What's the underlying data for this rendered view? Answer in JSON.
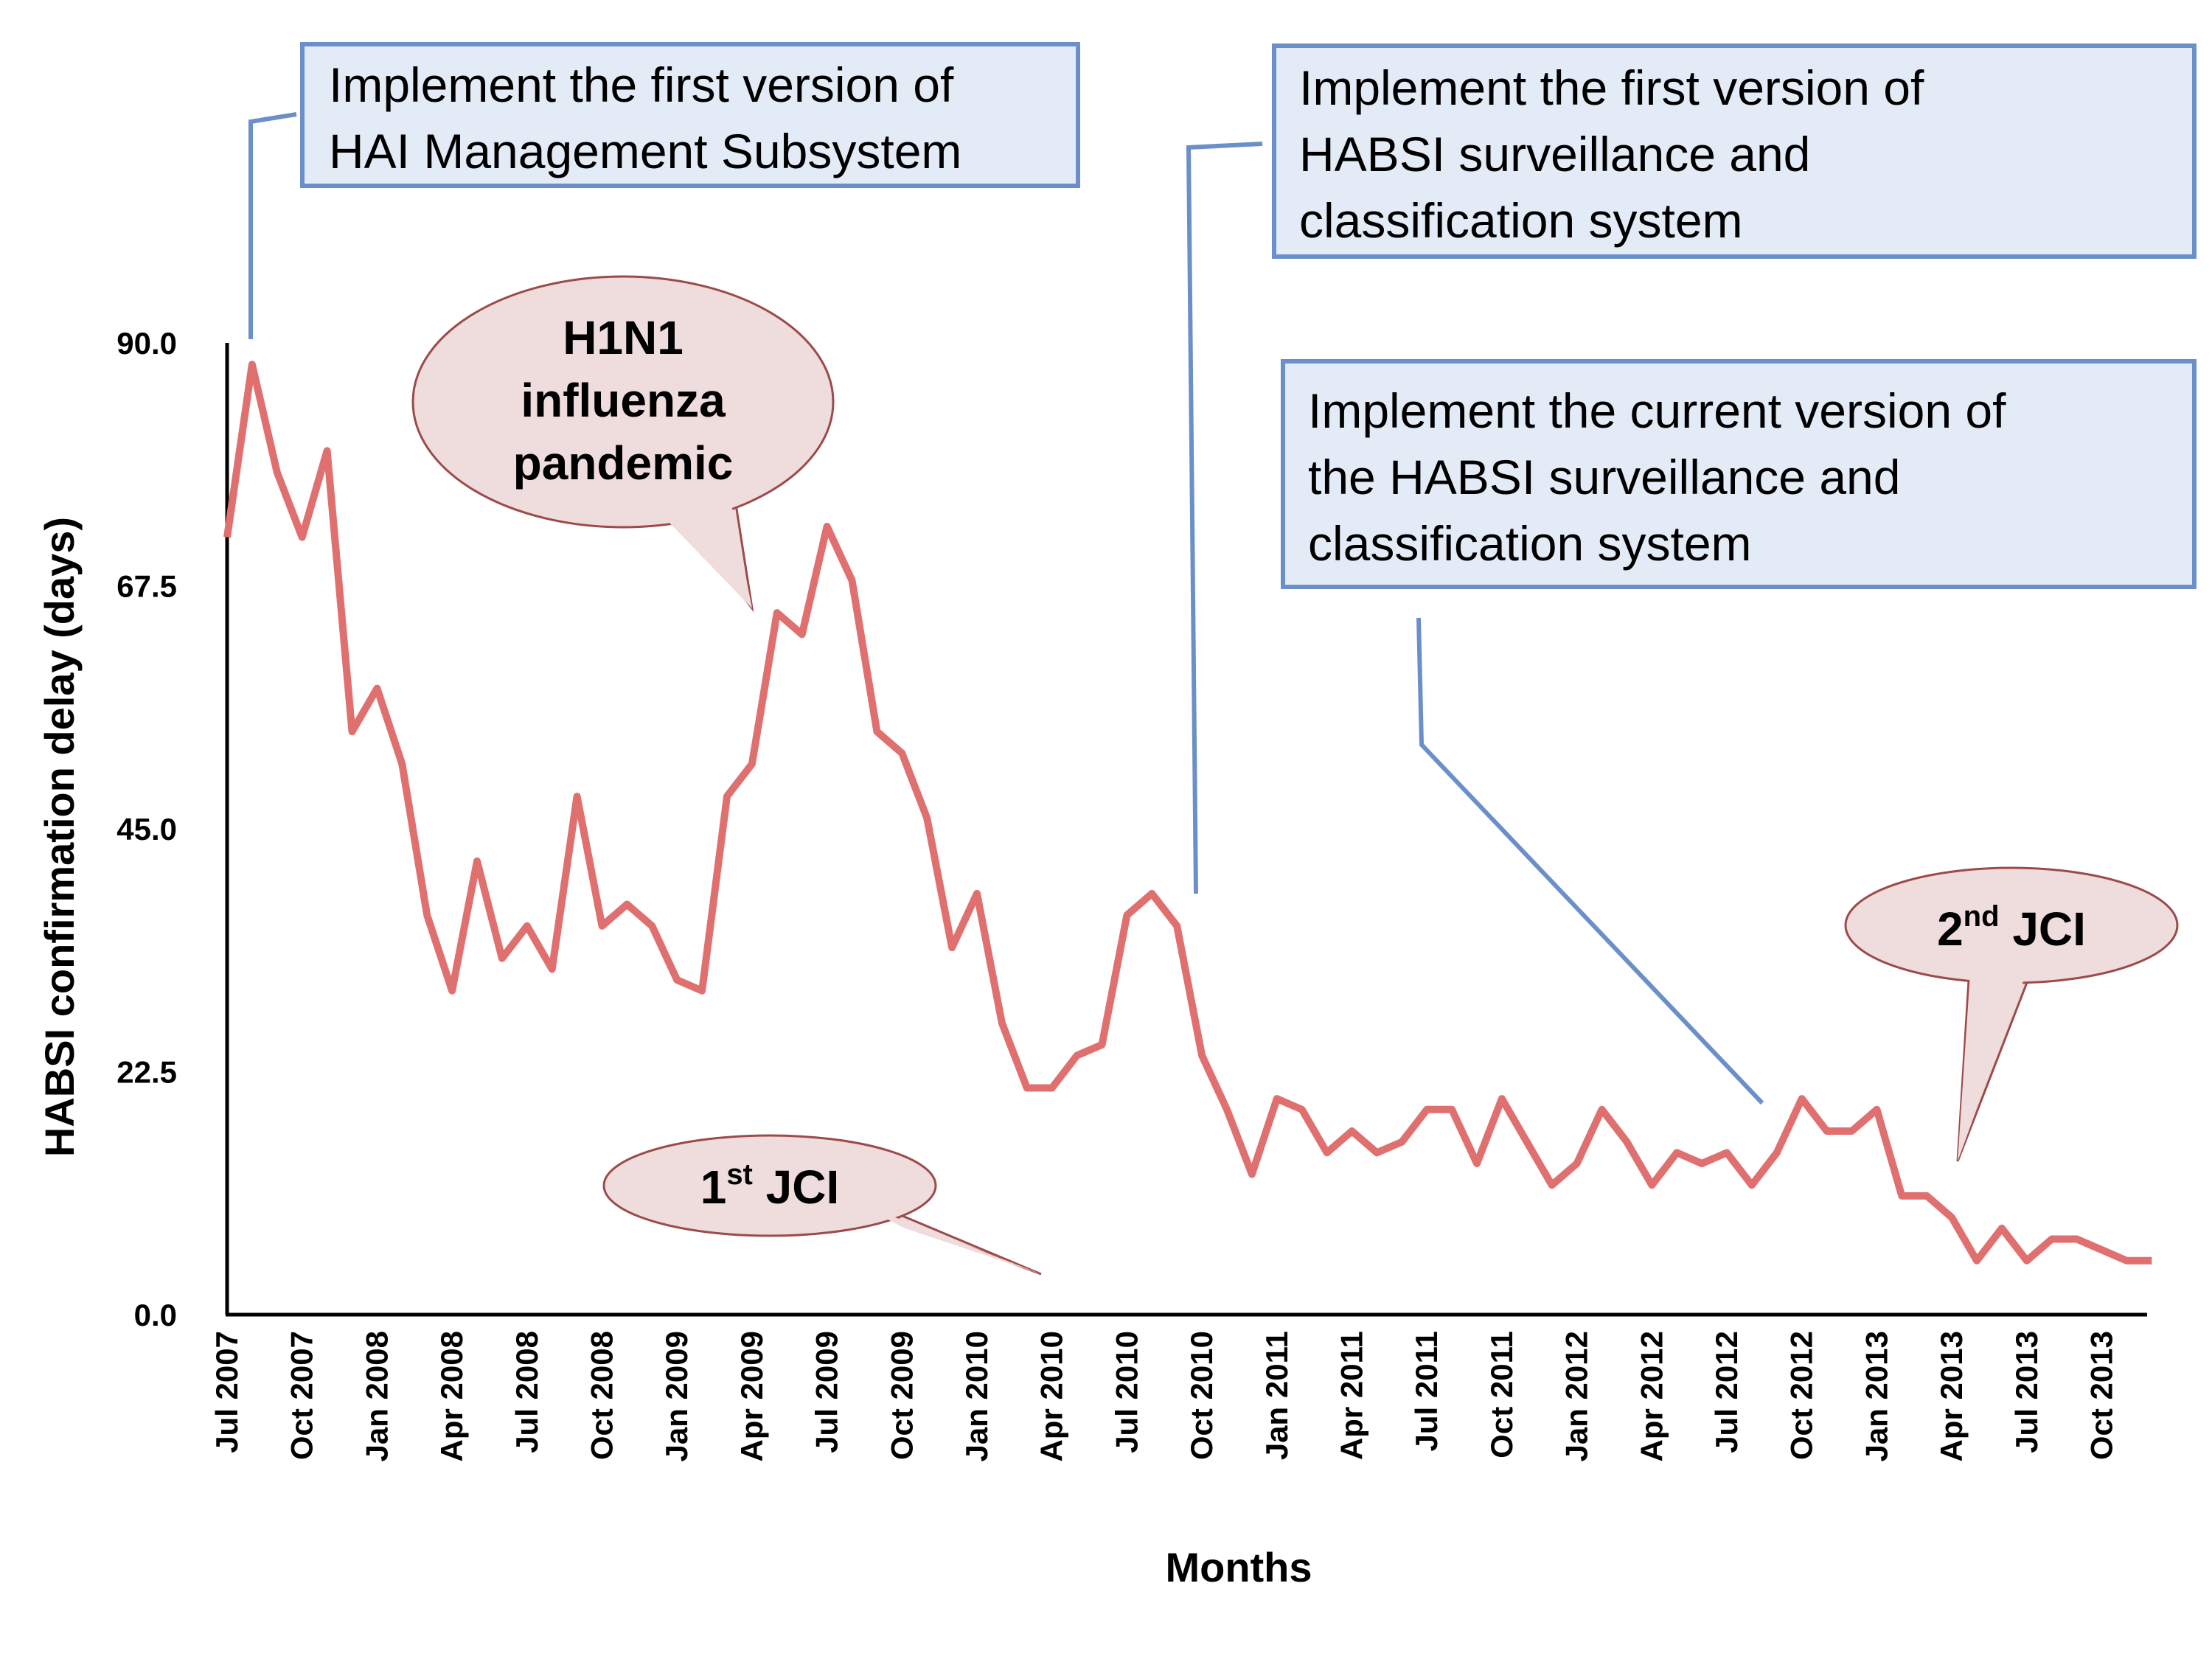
{
  "chart_data": {
    "type": "line",
    "xlabel": "Months",
    "ylabel": "HABSI confirmation delay (days)",
    "ylim": [
      0,
      90
    ],
    "y_ticks": [
      "0.0",
      "22.5",
      "45.0",
      "67.5",
      "90.0"
    ],
    "x_ticks": [
      "Jul 2007",
      "Oct 2007",
      "Jan 2008",
      "Apr 2008",
      "Jul 2008",
      "Oct 2008",
      "Jan 2009",
      "Apr 2009",
      "Jul 2009",
      "Oct 2009",
      "Jan 2010",
      "Apr 2010",
      "Jul 2010",
      "Oct 2010",
      "Jan 2011",
      "Apr 2011",
      "Jul 2011",
      "Oct 2011",
      "Jan 2012",
      "Apr 2012",
      "Jul 2012",
      "Oct 2012",
      "Jan 2013",
      "Apr 2013",
      "Jul 2013",
      "Oct 2013"
    ],
    "grid": false,
    "series": [
      {
        "color": "#e07070",
        "values": [
          72,
          88,
          78,
          72,
          80,
          54,
          58,
          51,
          37,
          30,
          42,
          33,
          36,
          32,
          48,
          36,
          38,
          36,
          31,
          30,
          48,
          51,
          65,
          63,
          73,
          68,
          54,
          52,
          46,
          34,
          39,
          27,
          21,
          21,
          24,
          25,
          37,
          39,
          36,
          24,
          19,
          13,
          20,
          19,
          15,
          17,
          15,
          16,
          19,
          19,
          14,
          20,
          16,
          12,
          14,
          19,
          16,
          12,
          15,
          14,
          15,
          12,
          15,
          20,
          17,
          17,
          19,
          11,
          11,
          9,
          5,
          8,
          5,
          7,
          7,
          6,
          5,
          5
        ]
      }
    ],
    "annotations": {
      "box1": [
        "Implement the first version of",
        "HAI Management Subsystem"
      ],
      "box2": [
        "Implement the first version of",
        "HABSI surveillance and",
        "classification system"
      ],
      "box3": [
        "Implement the current version of",
        "the HABSI surveillance and",
        "classification system"
      ],
      "bubble_h1n1": [
        "H1N1",
        "influenza",
        "pandemic"
      ],
      "bubble_jci1": {
        "num": "1",
        "sup": "st",
        "rest": " JCI"
      },
      "bubble_jci2": {
        "num": "2",
        "sup": "nd",
        "rest": " JCI"
      }
    }
  }
}
